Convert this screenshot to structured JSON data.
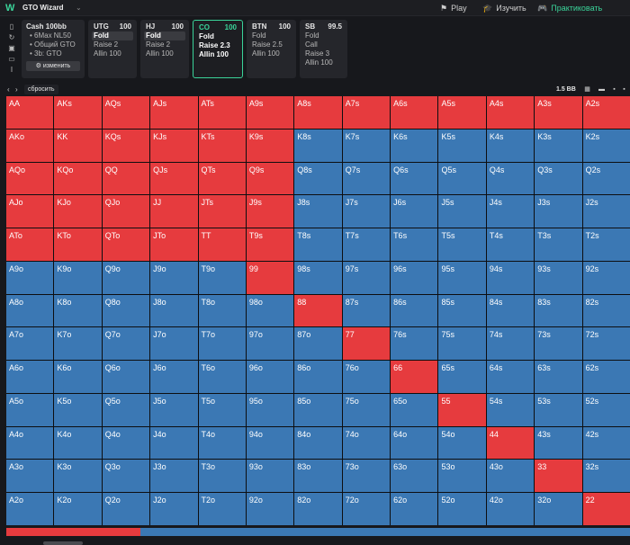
{
  "app": {
    "name": "GTO Wizard",
    "chevron": "⌄"
  },
  "nav": [
    {
      "icon": "⚑",
      "label": "Play",
      "active": false
    },
    {
      "icon": "🎓",
      "label": "Изучить",
      "active": false
    },
    {
      "icon": "🎮",
      "label": "Практиковать",
      "active": true
    }
  ],
  "sidebar_icons": [
    "bookmark-icon",
    "history-icon",
    "save-icon",
    "table-icon",
    "cursor-icon"
  ],
  "info": {
    "title": "Cash  100bb",
    "items": [
      "• 6Max NL50",
      "• Общий GTO",
      "• 3b: GTO"
    ],
    "edit_label": "⚙ изменить"
  },
  "positions": [
    {
      "name": "UTG",
      "stack": "100",
      "options": [
        "Fold",
        "Raise 2",
        "Allin 100"
      ],
      "selected": 0,
      "active": false
    },
    {
      "name": "HJ",
      "stack": "100",
      "options": [
        "Fold",
        "Raise 2",
        "Allin 100"
      ],
      "selected": 0,
      "active": false
    },
    {
      "name": "CO",
      "stack": "100",
      "options": [
        "Fold",
        "Raise 2.3",
        "Allin 100"
      ],
      "selected": 1,
      "active": true
    },
    {
      "name": "BTN",
      "stack": "100",
      "options": [
        "Fold",
        "Raise 2.5",
        "Allin 100"
      ],
      "selected": -1,
      "active": false
    },
    {
      "name": "SB",
      "stack": "99.5",
      "options": [
        "Fold",
        "Call",
        "Raise 3",
        "Allin 100"
      ],
      "selected": -1,
      "active": false
    }
  ],
  "toolbar": {
    "back": "‹",
    "forward": "›",
    "reset_label": "сбросить",
    "bb_label": "1.5 BB"
  },
  "grid": {
    "hands": [
      [
        "AA",
        "AKs",
        "AQs",
        "AJs",
        "ATs",
        "A9s",
        "A8s",
        "A7s",
        "A6s",
        "A5s",
        "A4s",
        "A3s",
        "A2s"
      ],
      [
        "AKo",
        "KK",
        "KQs",
        "KJs",
        "KTs",
        "K9s",
        "K8s",
        "K7s",
        "K6s",
        "K5s",
        "K4s",
        "K3s",
        "K2s"
      ],
      [
        "AQo",
        "KQo",
        "QQ",
        "QJs",
        "QTs",
        "Q9s",
        "Q8s",
        "Q7s",
        "Q6s",
        "Q5s",
        "Q4s",
        "Q3s",
        "Q2s"
      ],
      [
        "AJo",
        "KJo",
        "QJo",
        "JJ",
        "JTs",
        "J9s",
        "J8s",
        "J7s",
        "J6s",
        "J5s",
        "J4s",
        "J3s",
        "J2s"
      ],
      [
        "ATo",
        "KTo",
        "QTo",
        "JTo",
        "TT",
        "T9s",
        "T8s",
        "T7s",
        "T6s",
        "T5s",
        "T4s",
        "T3s",
        "T2s"
      ],
      [
        "A9o",
        "K9o",
        "Q9o",
        "J9o",
        "T9o",
        "99",
        "98s",
        "97s",
        "96s",
        "95s",
        "94s",
        "93s",
        "92s"
      ],
      [
        "A8o",
        "K8o",
        "Q8o",
        "J8o",
        "T8o",
        "98o",
        "88",
        "87s",
        "86s",
        "85s",
        "84s",
        "83s",
        "82s"
      ],
      [
        "A7o",
        "K7o",
        "Q7o",
        "J7o",
        "T7o",
        "97o",
        "87o",
        "77",
        "76s",
        "75s",
        "74s",
        "73s",
        "72s"
      ],
      [
        "A6o",
        "K6o",
        "Q6o",
        "J6o",
        "T6o",
        "96o",
        "86o",
        "76o",
        "66",
        "65s",
        "64s",
        "63s",
        "62s"
      ],
      [
        "A5o",
        "K5o",
        "Q5o",
        "J5o",
        "T5o",
        "95o",
        "85o",
        "75o",
        "65o",
        "55",
        "54s",
        "53s",
        "52s"
      ],
      [
        "A4o",
        "K4o",
        "Q4o",
        "J4o",
        "T4o",
        "94o",
        "84o",
        "74o",
        "64o",
        "54o",
        "44",
        "43s",
        "42s"
      ],
      [
        "A3o",
        "K3o",
        "Q3o",
        "J3o",
        "T3o",
        "93o",
        "83o",
        "73o",
        "63o",
        "53o",
        "43o",
        "33",
        "32s"
      ],
      [
        "A2o",
        "K2o",
        "Q2o",
        "J2o",
        "T2o",
        "92o",
        "82o",
        "72o",
        "62o",
        "52o",
        "42o",
        "32o",
        "22"
      ]
    ],
    "actions": [
      "RRRRRRRRRRRRR",
      "RRRRRRBBBBBBB",
      "RRRRRRBBBBBBB",
      "RRRRRRBBBBBBB",
      "RRRRRRBBBBBBB",
      "BBBBBRBBBBBBB",
      "BBBBBBRBBBBBB",
      "BBBBBBBRBBBBB",
      "BBBBBBBBRBBBB",
      "BBBBBBBBBRBBB",
      "BBBBBBBBBBRBB",
      "BBBBBBBBBBBRB",
      "BBBBBBBBBBBBR"
    ],
    "colors": {
      "raise": "#e63b3e",
      "fold": "#3b78b4"
    }
  },
  "summary_bar": {
    "raise_fraction": 0.215
  }
}
